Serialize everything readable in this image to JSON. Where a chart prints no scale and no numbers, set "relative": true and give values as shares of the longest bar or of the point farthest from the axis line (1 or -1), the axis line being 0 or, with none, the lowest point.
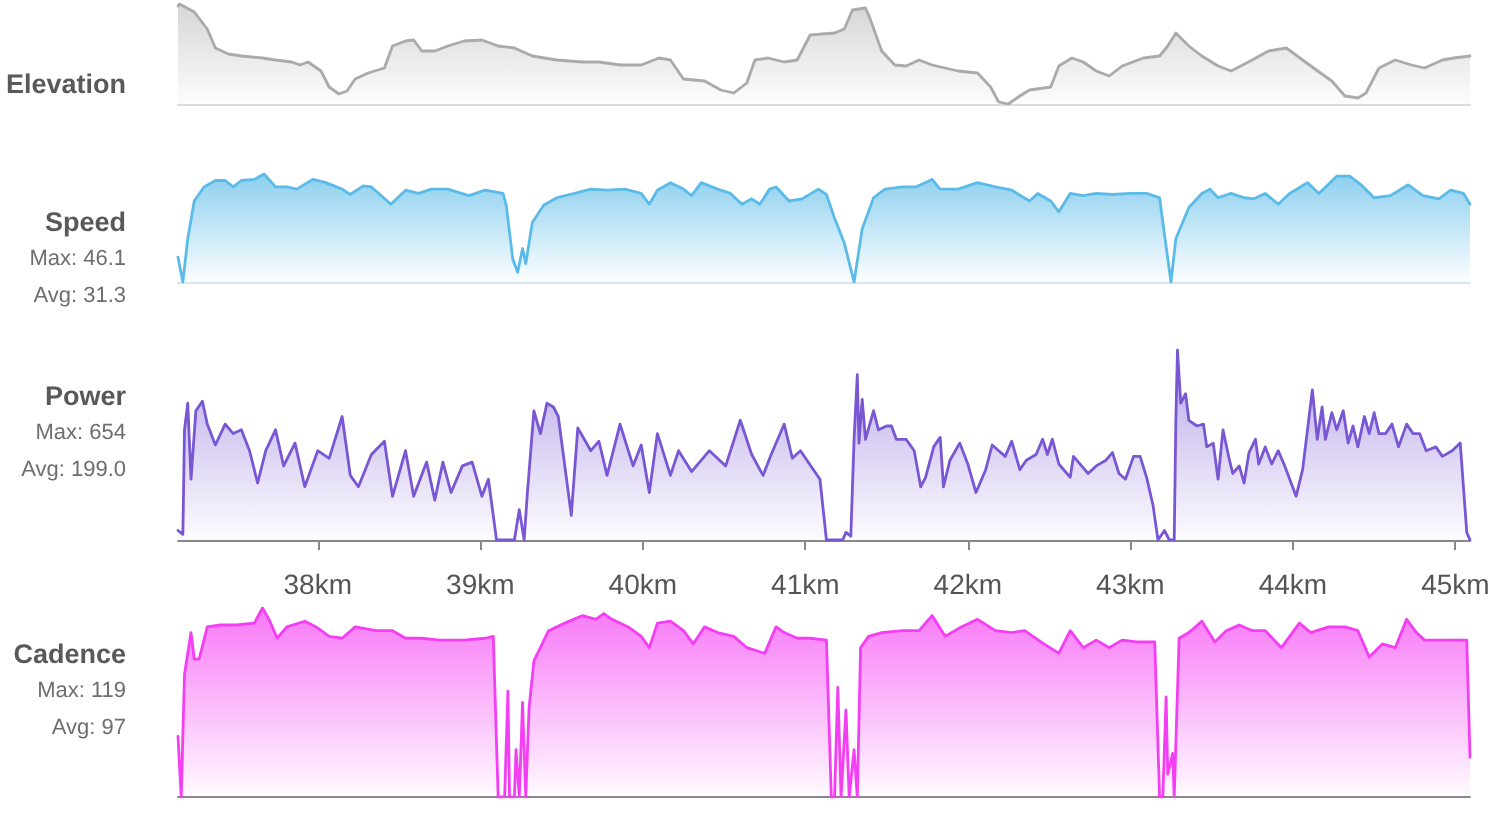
{
  "chart_data": [
    {
      "type": "area",
      "title": "Elevation",
      "relative": true,
      "color": "#aaaaaa",
      "xlim": [
        37.14,
        45.09
      ],
      "tick_labels": false,
      "x": [
        37.14,
        37.15,
        37.24,
        37.32,
        37.37,
        37.45,
        37.53,
        37.66,
        37.74,
        37.84,
        37.89,
        37.94,
        38.02,
        38.07,
        38.13,
        38.18,
        38.23,
        38.31,
        38.41,
        38.46,
        38.54,
        38.59,
        38.64,
        38.72,
        38.8,
        38.9,
        39.01,
        39.11,
        39.21,
        39.32,
        39.47,
        39.63,
        39.73,
        39.86,
        39.99,
        40.1,
        40.17,
        40.25,
        40.38,
        40.48,
        40.56,
        40.64,
        40.69,
        40.77,
        40.87,
        40.95,
        41.03,
        41.18,
        41.24,
        41.29,
        41.37,
        41.39,
        41.47,
        41.55,
        41.62,
        41.7,
        41.78,
        41.86,
        41.94,
        42.06,
        42.14,
        42.19,
        42.25,
        42.32,
        42.38,
        42.51,
        42.56,
        42.64,
        42.71,
        42.79,
        42.87,
        42.95,
        43.08,
        43.18,
        43.23,
        43.28,
        43.36,
        43.44,
        43.54,
        43.62,
        43.75,
        43.85,
        43.96,
        44.06,
        44.17,
        44.24,
        44.32,
        44.4,
        44.45,
        44.53,
        44.63,
        44.73,
        44.81,
        44.92,
        44.99,
        45.09
      ],
      "values": [
        0.98,
        1,
        0.92,
        0.75,
        0.56,
        0.5,
        0.48,
        0.46,
        0.44,
        0.42,
        0.39,
        0.42,
        0.33,
        0.17,
        0.1,
        0.13,
        0.25,
        0.31,
        0.36,
        0.58,
        0.63,
        0.64,
        0.53,
        0.53,
        0.58,
        0.63,
        0.64,
        0.58,
        0.56,
        0.48,
        0.44,
        0.42,
        0.42,
        0.39,
        0.39,
        0.46,
        0.44,
        0.25,
        0.23,
        0.14,
        0.11,
        0.21,
        0.44,
        0.46,
        0.42,
        0.44,
        0.69,
        0.71,
        0.75,
        0.94,
        0.96,
        0.89,
        0.53,
        0.39,
        0.38,
        0.44,
        0.39,
        0.36,
        0.33,
        0.31,
        0.17,
        0.02,
        0,
        0.08,
        0.14,
        0.17,
        0.38,
        0.46,
        0.42,
        0.33,
        0.28,
        0.38,
        0.46,
        0.48,
        0.58,
        0.71,
        0.58,
        0.48,
        0.38,
        0.33,
        0.44,
        0.53,
        0.56,
        0.44,
        0.31,
        0.23,
        0.08,
        0.06,
        0.11,
        0.36,
        0.44,
        0.39,
        0.36,
        0.44,
        0.46,
        0.48
      ]
    },
    {
      "type": "area",
      "title": "Speed",
      "annotations": [
        "Max: 46.1",
        "Avg: 31.3"
      ],
      "relative": true,
      "color": "#5bbbe8",
      "xlim": [
        37.14,
        45.09
      ],
      "tick_labels": false,
      "x": [
        37.14,
        37.17,
        37.2,
        37.24,
        37.3,
        37.37,
        37.43,
        37.48,
        37.53,
        37.61,
        37.67,
        37.74,
        37.81,
        37.87,
        37.97,
        38.05,
        38.15,
        38.2,
        38.28,
        38.33,
        38.45,
        38.54,
        38.62,
        38.7,
        38.8,
        38.93,
        39.03,
        39.14,
        39.16,
        39.2,
        39.23,
        39.26,
        39.28,
        39.32,
        39.39,
        39.47,
        39.58,
        39.68,
        39.78,
        39.89,
        39.99,
        40.04,
        40.09,
        40.17,
        40.25,
        40.3,
        40.36,
        40.46,
        40.54,
        40.61,
        40.67,
        40.72,
        40.78,
        40.82,
        40.9,
        40.98,
        41.08,
        41.13,
        41.18,
        41.24,
        41.3,
        41.35,
        41.42,
        41.49,
        41.6,
        41.68,
        41.78,
        41.83,
        41.94,
        42.06,
        42.17,
        42.27,
        42.38,
        42.43,
        42.51,
        42.56,
        42.63,
        42.71,
        42.79,
        42.89,
        43.0,
        43.1,
        43.18,
        43.21,
        43.25,
        43.28,
        43.36,
        43.44,
        43.49,
        43.54,
        43.62,
        43.7,
        43.76,
        43.83,
        43.91,
        43.98,
        44.09,
        44.16,
        44.27,
        44.35,
        44.42,
        44.5,
        44.6,
        44.71,
        44.8,
        44.9,
        44.97,
        45.05,
        45.09
      ],
      "values": [
        0.23,
        0,
        0.4,
        0.75,
        0.88,
        0.94,
        0.94,
        0.88,
        0.94,
        0.95,
        1,
        0.88,
        0.88,
        0.86,
        0.95,
        0.92,
        0.86,
        0.81,
        0.89,
        0.88,
        0.72,
        0.85,
        0.82,
        0.86,
        0.86,
        0.8,
        0.85,
        0.82,
        0.71,
        0.21,
        0.09,
        0.31,
        0.17,
        0.55,
        0.71,
        0.78,
        0.82,
        0.86,
        0.85,
        0.86,
        0.82,
        0.72,
        0.85,
        0.92,
        0.86,
        0.8,
        0.92,
        0.86,
        0.82,
        0.72,
        0.77,
        0.72,
        0.86,
        0.88,
        0.75,
        0.77,
        0.86,
        0.81,
        0.59,
        0.36,
        0,
        0.49,
        0.78,
        0.86,
        0.88,
        0.88,
        0.95,
        0.86,
        0.86,
        0.92,
        0.88,
        0.85,
        0.75,
        0.82,
        0.75,
        0.65,
        0.82,
        0.8,
        0.82,
        0.81,
        0.82,
        0.82,
        0.78,
        0.44,
        0,
        0.4,
        0.69,
        0.82,
        0.86,
        0.78,
        0.82,
        0.78,
        0.77,
        0.82,
        0.72,
        0.82,
        0.92,
        0.82,
        0.98,
        0.98,
        0.9,
        0.78,
        0.8,
        0.9,
        0.8,
        0.77,
        0.85,
        0.82,
        0.72
      ]
    },
    {
      "type": "area",
      "title": "Power",
      "annotations": [
        "Max: 654",
        "Avg: 199.0"
      ],
      "relative": true,
      "color": "#7856d4",
      "xlim": [
        37.14,
        45.09
      ],
      "tick_labels": "x",
      "xticks": [
        {
          "value": 38,
          "label": "38km"
        },
        {
          "value": 39,
          "label": "39km"
        },
        {
          "value": 40,
          "label": "40km"
        },
        {
          "value": 41,
          "label": "41km"
        },
        {
          "value": 42,
          "label": "42km"
        },
        {
          "value": 43,
          "label": "43km"
        },
        {
          "value": 44,
          "label": "44km"
        },
        {
          "value": 45,
          "label": "45km"
        }
      ],
      "x": [
        37.14,
        37.17,
        37.18,
        37.2,
        37.22,
        37.25,
        37.29,
        37.32,
        37.37,
        37.43,
        37.48,
        37.53,
        37.58,
        37.63,
        37.68,
        37.74,
        37.79,
        37.86,
        37.92,
        38.0,
        38.07,
        38.15,
        38.2,
        38.25,
        38.33,
        38.41,
        38.46,
        38.54,
        38.59,
        38.67,
        38.72,
        38.77,
        38.82,
        38.89,
        38.95,
        39.01,
        39.05,
        39.1,
        39.21,
        39.24,
        39.27,
        39.29,
        39.33,
        39.37,
        39.41,
        39.45,
        39.48,
        39.52,
        39.56,
        39.6,
        39.68,
        39.73,
        39.78,
        39.86,
        39.94,
        39.99,
        40.04,
        40.09,
        40.17,
        40.22,
        40.3,
        40.41,
        40.51,
        40.6,
        40.67,
        40.74,
        40.79,
        40.87,
        40.92,
        40.97,
        41.09,
        41.13,
        41.23,
        41.25,
        41.28,
        41.3,
        41.32,
        41.33,
        41.35,
        41.37,
        41.42,
        41.45,
        41.5,
        41.53,
        41.56,
        41.62,
        41.67,
        41.71,
        41.74,
        41.79,
        41.83,
        41.85,
        41.89,
        41.95,
        42.0,
        42.05,
        42.11,
        42.15,
        42.19,
        42.23,
        42.27,
        42.32,
        42.36,
        42.42,
        42.46,
        42.49,
        42.52,
        42.56,
        42.63,
        42.65,
        42.7,
        42.74,
        42.79,
        42.85,
        42.89,
        42.93,
        42.97,
        43.02,
        43.06,
        43.1,
        43.14,
        43.17,
        43.21,
        43.24,
        43.27,
        43.28,
        43.29,
        43.31,
        43.34,
        43.36,
        43.41,
        43.45,
        43.47,
        43.51,
        43.54,
        43.57,
        43.61,
        43.63,
        43.67,
        43.7,
        43.73,
        43.77,
        43.79,
        43.83,
        43.87,
        43.91,
        43.95,
        44.02,
        44.06,
        44.12,
        44.15,
        44.18,
        44.2,
        44.24,
        44.27,
        44.31,
        44.34,
        44.37,
        44.4,
        44.44,
        44.47,
        44.5,
        44.53,
        44.57,
        44.61,
        44.65,
        44.7,
        44.74,
        44.78,
        44.82,
        44.88,
        44.92,
        44.98,
        45.03,
        45.07,
        45.09
      ],
      "values": [
        0.05,
        0.03,
        0.58,
        0.72,
        0.32,
        0.68,
        0.73,
        0.61,
        0.5,
        0.61,
        0.56,
        0.58,
        0.47,
        0.3,
        0.47,
        0.58,
        0.39,
        0.51,
        0.28,
        0.47,
        0.43,
        0.65,
        0.34,
        0.28,
        0.45,
        0.52,
        0.23,
        0.47,
        0.23,
        0.41,
        0.21,
        0.41,
        0.25,
        0.39,
        0.41,
        0.23,
        0.32,
        0,
        0,
        0.16,
        0,
        0.25,
        0.68,
        0.56,
        0.72,
        0.7,
        0.65,
        0.39,
        0.13,
        0.59,
        0.47,
        0.52,
        0.34,
        0.61,
        0.39,
        0.5,
        0.25,
        0.56,
        0.34,
        0.47,
        0.36,
        0.47,
        0.39,
        0.63,
        0.45,
        0.34,
        0.45,
        0.61,
        0.43,
        0.47,
        0.32,
        0,
        0,
        0.04,
        0.02,
        0.53,
        0.87,
        0.51,
        0.74,
        0.53,
        0.68,
        0.58,
        0.6,
        0.6,
        0.53,
        0.53,
        0.47,
        0.28,
        0.33,
        0.49,
        0.54,
        0.28,
        0.42,
        0.51,
        0.4,
        0.25,
        0.37,
        0.5,
        0.47,
        0.44,
        0.52,
        0.37,
        0.42,
        0.45,
        0.53,
        0.45,
        0.53,
        0.4,
        0.33,
        0.44,
        0.39,
        0.35,
        0.39,
        0.42,
        0.46,
        0.35,
        0.32,
        0.44,
        0.44,
        0.33,
        0.18,
        0,
        0.05,
        0,
        0,
        0.63,
        1,
        0.72,
        0.77,
        0.63,
        0.6,
        0.61,
        0.49,
        0.51,
        0.32,
        0.58,
        0.42,
        0.35,
        0.39,
        0.3,
        0.46,
        0.53,
        0.4,
        0.49,
        0.4,
        0.47,
        0.39,
        0.23,
        0.37,
        0.79,
        0.53,
        0.7,
        0.53,
        0.67,
        0.58,
        0.68,
        0.51,
        0.6,
        0.49,
        0.65,
        0.56,
        0.67,
        0.56,
        0.56,
        0.61,
        0.49,
        0.61,
        0.56,
        0.56,
        0.47,
        0.49,
        0.44,
        0.47,
        0.51,
        0.04,
        0
      ]
    },
    {
      "type": "area",
      "title": "Cadence",
      "annotations": [
        "Max: 119",
        "Avg: 97"
      ],
      "relative": true,
      "color": "#f43ef4",
      "xlim": [
        37.14,
        45.09
      ],
      "tick_labels": false,
      "x": [
        37.14,
        37.16,
        37.18,
        37.22,
        37.24,
        37.27,
        37.32,
        37.4,
        37.5,
        37.61,
        37.66,
        37.7,
        37.75,
        37.81,
        37.92,
        37.99,
        38.07,
        38.15,
        38.23,
        38.36,
        38.46,
        38.54,
        38.64,
        38.75,
        38.9,
        39.03,
        39.08,
        39.11,
        39.15,
        39.17,
        39.18,
        39.21,
        39.22,
        39.24,
        39.26,
        39.28,
        39.3,
        39.33,
        39.37,
        39.42,
        39.52,
        39.63,
        39.71,
        39.76,
        39.81,
        39.91,
        39.99,
        40.04,
        40.09,
        40.17,
        40.25,
        40.31,
        40.38,
        40.46,
        40.56,
        40.64,
        40.75,
        40.82,
        40.87,
        40.95,
        41.03,
        41.13,
        41.16,
        41.18,
        41.2,
        41.22,
        41.25,
        41.27,
        41.3,
        41.32,
        41.34,
        41.39,
        41.47,
        41.6,
        41.7,
        41.78,
        41.86,
        41.96,
        42.06,
        42.17,
        42.27,
        42.35,
        42.45,
        42.56,
        42.63,
        42.71,
        42.79,
        42.87,
        42.95,
        43.05,
        43.15,
        43.18,
        43.2,
        43.22,
        43.23,
        43.26,
        43.27,
        43.3,
        43.36,
        43.44,
        43.52,
        43.59,
        43.67,
        43.75,
        43.83,
        43.93,
        44.04,
        44.11,
        44.22,
        44.32,
        44.4,
        44.47,
        44.55,
        44.63,
        44.7,
        44.76,
        44.81,
        44.92,
        45.07,
        45.09
      ],
      "values": [
        0.32,
        0,
        0.65,
        0.87,
        0.73,
        0.73,
        0.9,
        0.91,
        0.91,
        0.92,
        1,
        0.94,
        0.84,
        0.9,
        0.93,
        0.9,
        0.85,
        0.84,
        0.9,
        0.88,
        0.88,
        0.84,
        0.84,
        0.83,
        0.83,
        0.84,
        0.85,
        0,
        0,
        0.56,
        0,
        0,
        0.25,
        0,
        0.5,
        0,
        0.47,
        0.72,
        0.79,
        0.88,
        0.92,
        0.96,
        0.94,
        0.97,
        0.94,
        0.9,
        0.85,
        0.79,
        0.92,
        0.93,
        0.88,
        0.81,
        0.9,
        0.87,
        0.85,
        0.79,
        0.76,
        0.9,
        0.87,
        0.84,
        0.84,
        0.83,
        0,
        0,
        0.58,
        0,
        0.46,
        0,
        0.25,
        0,
        0.79,
        0.85,
        0.87,
        0.88,
        0.88,
        0.96,
        0.85,
        0.9,
        0.94,
        0.88,
        0.87,
        0.88,
        0.82,
        0.76,
        0.88,
        0.79,
        0.83,
        0.79,
        0.83,
        0.82,
        0.82,
        0,
        0,
        0.53,
        0.12,
        0.23,
        0,
        0.84,
        0.87,
        0.93,
        0.82,
        0.88,
        0.91,
        0.88,
        0.88,
        0.79,
        0.92,
        0.87,
        0.9,
        0.9,
        0.88,
        0.74,
        0.81,
        0.79,
        0.94,
        0.87,
        0.83,
        0.83,
        0.83,
        0.21
      ]
    }
  ]
}
